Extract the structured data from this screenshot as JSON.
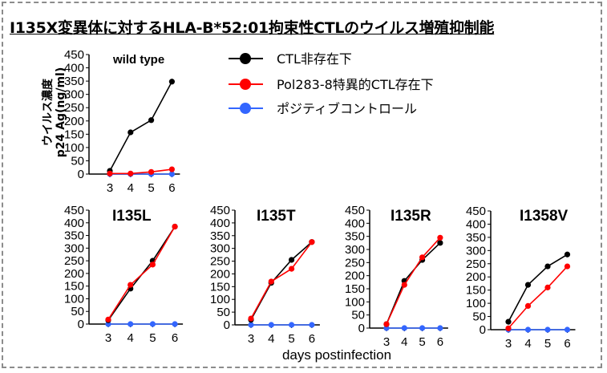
{
  "title": "I135X変異体に対するHLA-B*52:01拘束性CTLのウイルス増殖抑制能",
  "chart_data": {
    "type": "line",
    "ylabel_line1": "ウイルス濃度",
    "ylabel_line2": "p24 Ag(ng/ml)",
    "xlabel": "days postinfection",
    "yticks": [
      0,
      50,
      100,
      150,
      200,
      250,
      300,
      350,
      400,
      450
    ],
    "ylim": [
      0,
      450
    ],
    "x": [
      3,
      4,
      5,
      6
    ],
    "legend": [
      {
        "name": "CTL非存在下",
        "color": "#000000"
      },
      {
        "name": "Pol283-8特異的CTL存在下",
        "color": "#ff0000"
      },
      {
        "name": "ポジティブコントロール",
        "color": "#3366ff"
      }
    ],
    "panels": [
      {
        "title": "wild type",
        "series": [
          {
            "name": "CTL非存在下",
            "values": [
              12,
              157,
              203,
              348
            ]
          },
          {
            "name": "Pol283-8特異的CTL存在下",
            "values": [
              2,
              2,
              8,
              18
            ]
          },
          {
            "name": "ポジティブコントロール",
            "values": [
              0,
              0,
              0,
              0
            ]
          }
        ]
      },
      {
        "title": "I135L",
        "series": [
          {
            "name": "CTL非存在下",
            "values": [
              15,
              140,
              250,
              385
            ]
          },
          {
            "name": "Pol283-8特異的CTL存在下",
            "values": [
              18,
              155,
              235,
              385
            ]
          },
          {
            "name": "ポジティブコントロール",
            "values": [
              0,
              0,
              0,
              0
            ]
          }
        ]
      },
      {
        "title": "I135T",
        "series": [
          {
            "name": "CTL非存在下",
            "values": [
              20,
              165,
              255,
              325
            ]
          },
          {
            "name": "Pol283-8特異的CTL存在下",
            "values": [
              25,
              170,
              220,
              325
            ]
          },
          {
            "name": "ポジティブコントロール",
            "values": [
              0,
              0,
              0,
              0
            ]
          }
        ]
      },
      {
        "title": "I135R",
        "series": [
          {
            "name": "CTL非存在下",
            "values": [
              15,
              180,
              260,
              325
            ]
          },
          {
            "name": "Pol283-8特異的CTL存在下",
            "values": [
              15,
              165,
              270,
              345
            ]
          },
          {
            "name": "ポジティブコントロール",
            "values": [
              0,
              0,
              0,
              0
            ]
          }
        ]
      },
      {
        "title": "I1358V",
        "series": [
          {
            "name": "CTL非存在下",
            "values": [
              30,
              170,
              240,
              285
            ]
          },
          {
            "name": "Pol283-8特異的CTL存在下",
            "values": [
              5,
              90,
              160,
              240
            ]
          },
          {
            "name": "ポジティブコントロール",
            "values": [
              0,
              0,
              0,
              0
            ]
          }
        ]
      }
    ]
  }
}
